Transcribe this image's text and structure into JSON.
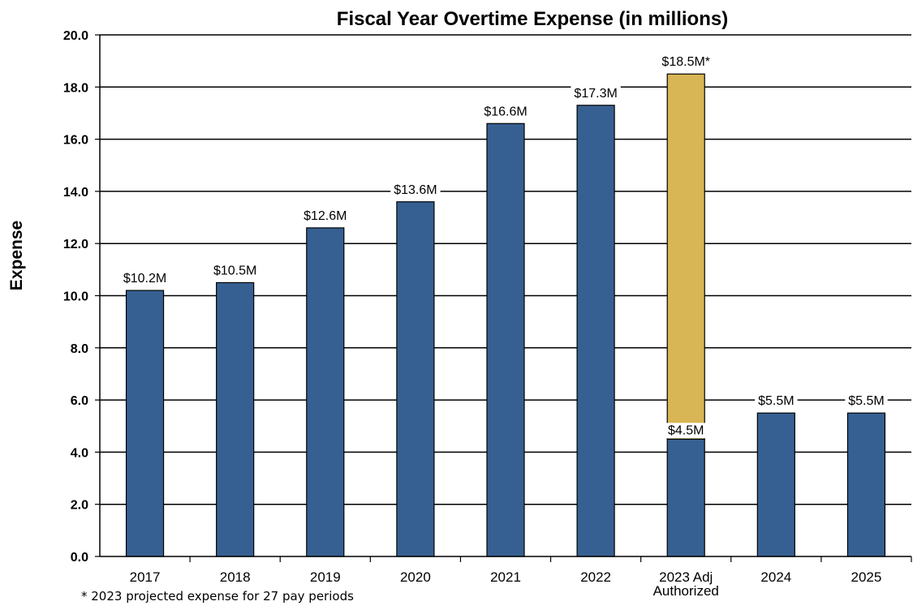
{
  "chart_data": {
    "type": "bar",
    "title": "Fiscal Year Overtime Expense (in millions)",
    "xlabel": "",
    "ylabel": "Expense",
    "ylim": [
      0,
      20
    ],
    "ytick_step": 2,
    "ytick_format_decimals": 1,
    "grid": true,
    "legend": "none",
    "categories": [
      [
        "2017"
      ],
      [
        "2018"
      ],
      [
        "2019"
      ],
      [
        "2020"
      ],
      [
        "2021"
      ],
      [
        "2022"
      ],
      [
        "2023 Adj",
        "Authorized"
      ],
      [
        "2024"
      ],
      [
        "2025"
      ]
    ],
    "values": [
      10.2,
      10.5,
      12.6,
      13.6,
      16.6,
      17.3,
      4.5,
      5.5,
      5.5
    ],
    "value_labels": [
      "$10.2M",
      "$10.5M",
      "$12.6M",
      "$13.6M",
      "$16.6M",
      "$17.3M",
      "$4.5M",
      "$5.5M",
      "$5.5M"
    ],
    "stacked_extension": {
      "category_index": 6,
      "total": 18.5,
      "label": "$18.5M*",
      "color": "#d8b555"
    },
    "colors": {
      "bar": "#376092",
      "extension": "#d8b555",
      "grid": "#000000"
    }
  },
  "footnote": "* 2023 projected expense for 27 pay periods"
}
